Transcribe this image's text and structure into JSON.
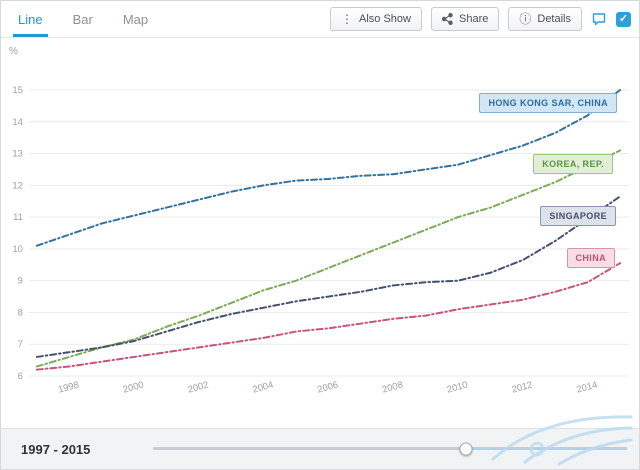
{
  "toolbar": {
    "tabs": [
      {
        "label": "Line",
        "active": true
      },
      {
        "label": "Bar",
        "active": false
      },
      {
        "label": "Map",
        "active": false
      }
    ],
    "buttons": {
      "also_show": "Also Show",
      "share": "Share",
      "details": "Details"
    },
    "icons": {
      "also_show": "⋮",
      "details": "ⓘ",
      "check": "✓"
    },
    "accent_color": "#1d9ad6"
  },
  "chart_data": {
    "type": "line",
    "unit": "%",
    "grid": true,
    "x": [
      1997,
      1998,
      1999,
      2000,
      2001,
      2002,
      2003,
      2004,
      2005,
      2006,
      2007,
      2008,
      2009,
      2010,
      2011,
      2012,
      2013,
      2014,
      2015
    ],
    "x_ticks": [
      1998,
      2000,
      2002,
      2004,
      2006,
      2008,
      2010,
      2012,
      2014
    ],
    "ylim": [
      6,
      15
    ],
    "y_ticks": [
      6,
      7,
      8,
      9,
      10,
      11,
      12,
      13,
      14,
      15
    ],
    "legend_position": "inline-right-labels",
    "series": [
      {
        "name": "HONG KONG SAR, CHINA",
        "color": "#31739e",
        "values": [
          10.1,
          10.45,
          10.8,
          11.05,
          11.3,
          11.55,
          11.8,
          12.0,
          12.15,
          12.2,
          12.3,
          12.35,
          12.5,
          12.65,
          12.95,
          13.25,
          13.65,
          14.2,
          15.0
        ]
      },
      {
        "name": "KOREA, REP.",
        "color": "#7cab57",
        "values": [
          6.3,
          6.6,
          6.9,
          7.15,
          7.55,
          7.9,
          8.3,
          8.7,
          9.0,
          9.4,
          9.8,
          10.2,
          10.6,
          11.0,
          11.3,
          11.7,
          12.1,
          12.6,
          13.1
        ]
      },
      {
        "name": "SINGAPORE",
        "color": "#44506e",
        "values": [
          6.6,
          6.75,
          6.9,
          7.1,
          7.4,
          7.7,
          7.95,
          8.15,
          8.35,
          8.5,
          8.65,
          8.85,
          8.95,
          9.0,
          9.25,
          9.65,
          10.25,
          10.95,
          11.65
        ]
      },
      {
        "name": "CHINA",
        "color": "#c9537a",
        "values": [
          6.2,
          6.3,
          6.45,
          6.6,
          6.75,
          6.9,
          7.05,
          7.2,
          7.4,
          7.5,
          7.65,
          7.8,
          7.9,
          8.1,
          8.25,
          8.4,
          8.65,
          8.95,
          9.55
        ]
      }
    ]
  },
  "slider": {
    "range_label": "1997 - 2015"
  }
}
